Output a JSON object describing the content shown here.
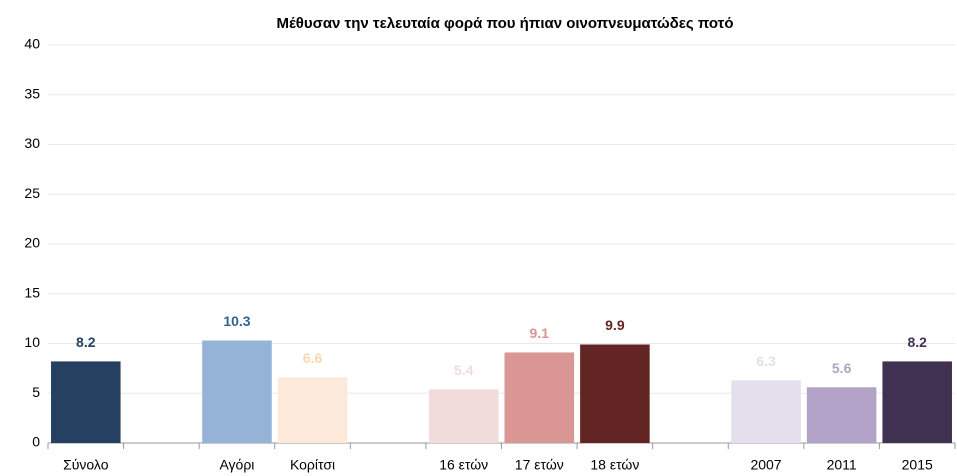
{
  "chart_data": {
    "type": "bar",
    "title": "Μέθυσαν την  τελευταία φορά που ήπιαν οινοπνευματώδες ποτό",
    "categories": [
      "Σύνολο",
      null,
      "Αγόρι",
      "Κορίτσι",
      null,
      "16 ετών",
      "17 ετών",
      "18 ετών",
      null,
      "2007",
      "2011",
      "2015"
    ],
    "values": [
      8.2,
      null,
      10.3,
      6.6,
      null,
      5.4,
      9.1,
      9.9,
      null,
      6.3,
      5.6,
      8.2
    ],
    "colors": [
      "#254061",
      null,
      "#95b3d7",
      "#fde9d9",
      null,
      "#f2dcdb",
      "#d99694",
      "#632523",
      null,
      "#e4dfec",
      "#b3a2c7",
      "#403151"
    ],
    "label_colors": [
      "#254061",
      null,
      "#366092",
      "#fcd5b4",
      null,
      "#f2dcdb",
      "#d99694",
      "#632523",
      null,
      "#e4dfec",
      "#b3a2c7",
      "#403151"
    ],
    "ylim": [
      0,
      40
    ],
    "yticks": [
      0,
      5,
      10,
      15,
      20,
      25,
      30,
      35,
      40
    ],
    "grid": true
  }
}
